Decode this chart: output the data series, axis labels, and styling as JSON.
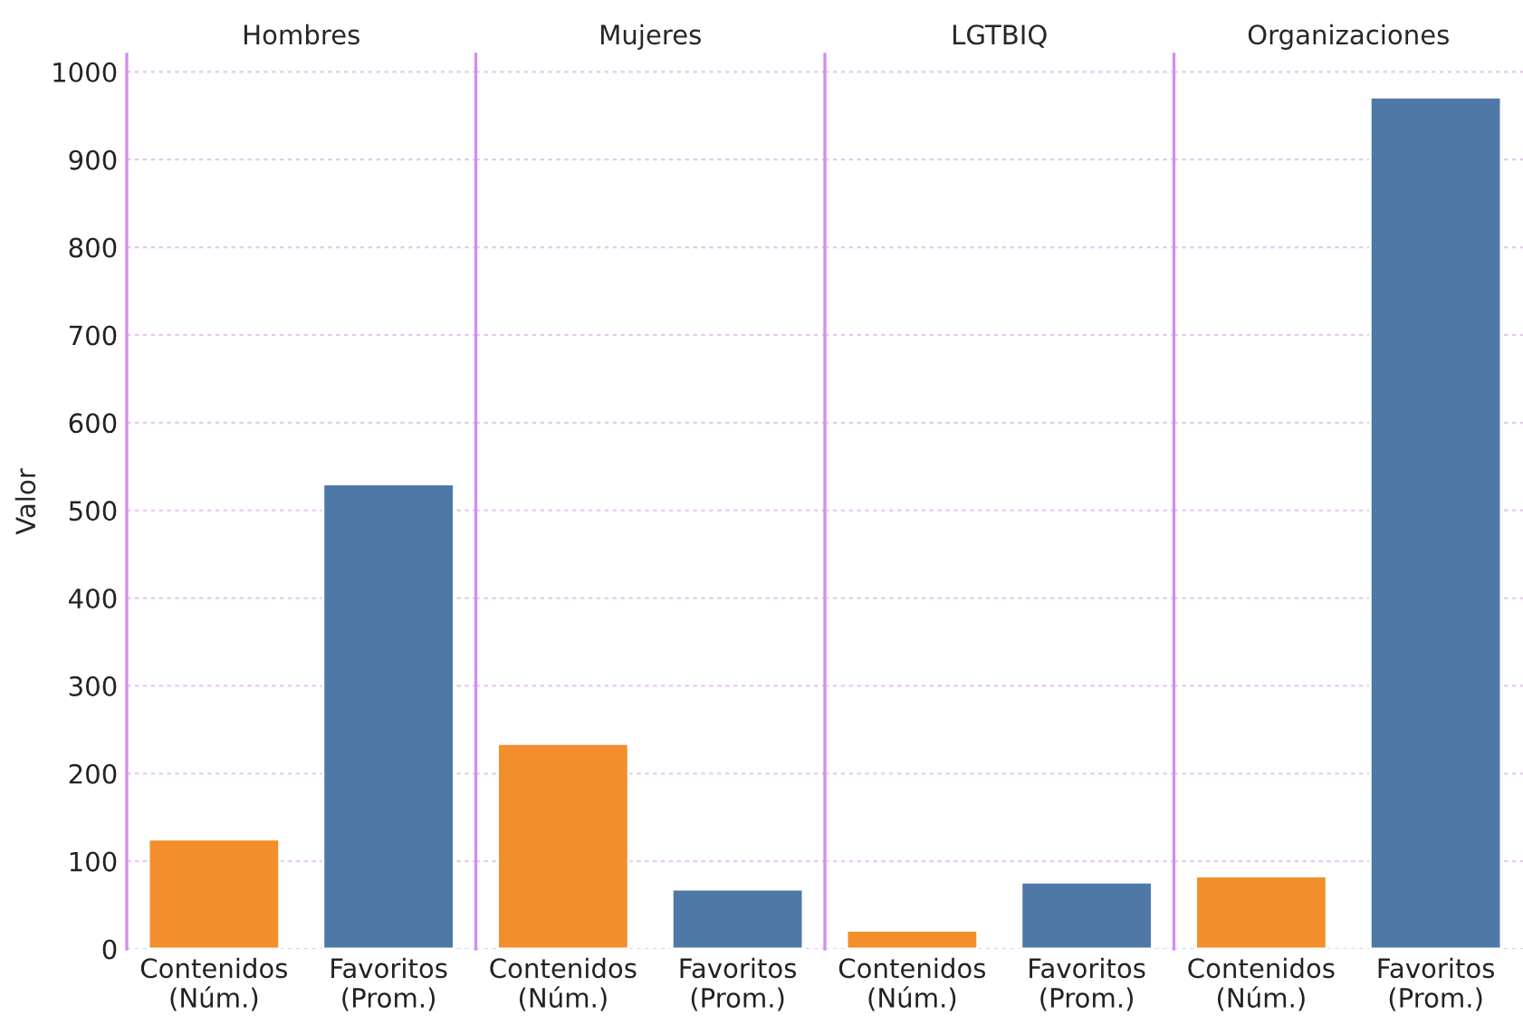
{
  "chart_data": [
    {
      "type": "bar",
      "title": "Hombres",
      "ylabel": "Valor",
      "categories": [
        "Contenidos\n(Núm.)",
        "Favoritos\n(Prom.)"
      ],
      "values": [
        125,
        530
      ],
      "colors": [
        "#f28e2b",
        "#4e79a7"
      ],
      "ylim": [
        0,
        1020
      ],
      "yticks": [
        0,
        100,
        200,
        300,
        400,
        500,
        600,
        700,
        800,
        900,
        1000
      ],
      "grid": "y"
    },
    {
      "type": "bar",
      "title": "Mujeres",
      "categories": [
        "Contenidos\n(Núm.)",
        "Favoritos\n(Prom.)"
      ],
      "values": [
        234,
        68
      ],
      "colors": [
        "#f28e2b",
        "#4e79a7"
      ],
      "ylim": [
        0,
        1020
      ],
      "yticks": [
        0,
        100,
        200,
        300,
        400,
        500,
        600,
        700,
        800,
        900,
        1000
      ],
      "grid": "y",
      "tick_labels": "x"
    },
    {
      "type": "bar",
      "title": "LGTBIQ",
      "categories": [
        "Contenidos\n(Núm.)",
        "Favoritos\n(Prom.)"
      ],
      "values": [
        21,
        76
      ],
      "colors": [
        "#f28e2b",
        "#4e79a7"
      ],
      "ylim": [
        0,
        1020
      ],
      "yticks": [
        0,
        100,
        200,
        300,
        400,
        500,
        600,
        700,
        800,
        900,
        1000
      ],
      "grid": "y",
      "tick_labels": "x"
    },
    {
      "type": "bar",
      "title": "Organizaciones",
      "categories": [
        "Contenidos\n(Núm.)",
        "Favoritos\n(Prom.)"
      ],
      "values": [
        83,
        971
      ],
      "colors": [
        "#f28e2b",
        "#4e79a7"
      ],
      "ylim": [
        0,
        1020
      ],
      "yticks": [
        0,
        100,
        200,
        300,
        400,
        500,
        600,
        700,
        800,
        900,
        1000
      ],
      "grid": "y",
      "tick_labels": "x"
    }
  ]
}
